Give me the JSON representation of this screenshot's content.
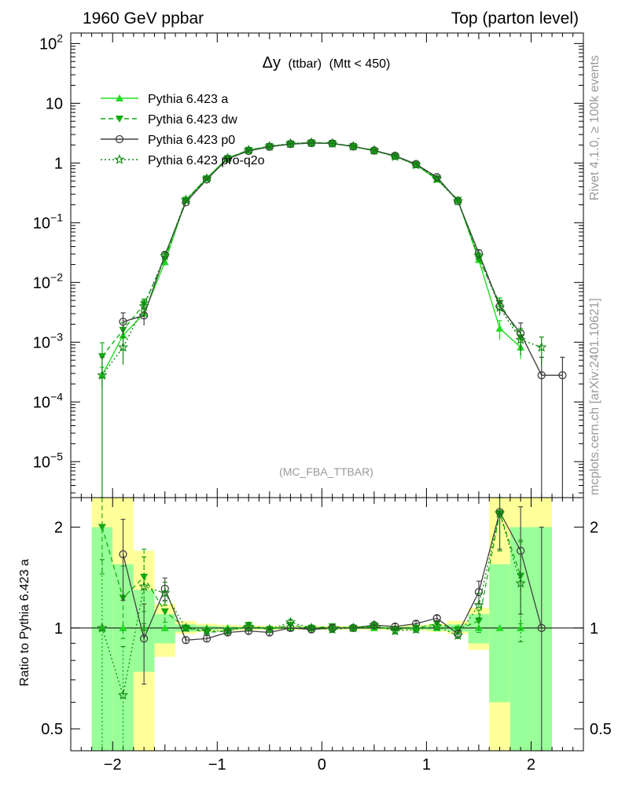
{
  "header": {
    "left": "1960 GeV ppbar",
    "right": "Top (parton level)"
  },
  "side_text": {
    "rivet": "Rivet 4.1.0, ≥ 100k events",
    "source": "mcplots.cern.ch [arXiv:2401.10621]"
  },
  "plot_title": {
    "delta": "Δy",
    "sub": "(ttbar)",
    "cut": "(Mtt < 450)"
  },
  "analysis_label": "(MC_FBA_TTBAR)",
  "colors": {
    "pythia_a": "#22dd22",
    "pythia_dw": "#11aa11",
    "pythia_p0": "#404040",
    "pythia_pro_q2o": "#118811",
    "band_yellow": "#ffff99",
    "band_green": "#99ff99"
  },
  "chart_data": [
    {
      "type": "line",
      "title": "Δy (ttbar) (Mtt < 450)",
      "xlabel": "",
      "ylabel": "",
      "yscale": "log",
      "xlim": [
        -2.4,
        2.5
      ],
      "ylim": [
        2.5e-06,
        150
      ],
      "y_ticks": [
        {
          "base": "10",
          "exp": "−5",
          "value": 1e-05
        },
        {
          "base": "10",
          "exp": "−4",
          "value": 0.0001
        },
        {
          "base": "10",
          "exp": "−3",
          "value": 0.001
        },
        {
          "base": "10",
          "exp": "−2",
          "value": 0.01
        },
        {
          "base": "10",
          "exp": "−1",
          "value": 0.1
        },
        {
          "base": "1",
          "exp": "",
          "value": 1
        },
        {
          "base": "10",
          "exp": "",
          "value": 10
        },
        {
          "base": "10",
          "exp": "2",
          "value": 100
        }
      ],
      "x": [
        -2.1,
        -1.9,
        -1.7,
        -1.5,
        -1.3,
        -1.1,
        -0.9,
        -0.7,
        -0.5,
        -0.3,
        -0.1,
        0.1,
        0.3,
        0.5,
        0.7,
        0.9,
        1.1,
        1.3,
        1.5,
        1.7,
        1.9,
        2.1,
        2.3
      ],
      "series": [
        {
          "name": "Pythia 6.423 a",
          "marker": "triangle-up",
          "dash": "solid",
          "values": [
            0.00028,
            0.0013,
            0.003,
            0.022,
            0.24,
            0.56,
            1.22,
            1.62,
            1.92,
            2.05,
            2.18,
            2.12,
            1.88,
            1.6,
            1.3,
            0.93,
            0.53,
            0.24,
            0.024,
            0.0017,
            0.00082,
            null,
            null
          ],
          "err": [
            0.0001,
            0.0003,
            0.0006,
            0.003,
            0.01,
            0.015,
            0.03,
            0.03,
            0.03,
            0.03,
            0.03,
            0.03,
            0.03,
            0.03,
            0.03,
            0.03,
            0.015,
            0.01,
            0.003,
            0.0006,
            0.0003,
            null,
            null
          ]
        },
        {
          "name": "Pythia 6.423 dw",
          "marker": "triangle-down",
          "dash": "dashed",
          "values": [
            0.00058,
            0.0016,
            0.0043,
            0.025,
            0.24,
            0.55,
            1.2,
            1.65,
            1.9,
            2.1,
            2.2,
            2.15,
            1.9,
            1.6,
            1.3,
            0.94,
            0.55,
            0.24,
            0.025,
            0.0045,
            0.0012,
            null,
            null
          ],
          "err": [
            0.0004,
            0.0005,
            0.001,
            0.003,
            0.01,
            0.015,
            0.03,
            0.03,
            0.03,
            0.03,
            0.03,
            0.03,
            0.03,
            0.03,
            0.03,
            0.03,
            0.015,
            0.01,
            0.003,
            0.001,
            0.0005,
            null,
            null
          ]
        },
        {
          "name": "Pythia 6.423 p0",
          "marker": "circle-open",
          "dash": "solid",
          "values": [
            null,
            0.0022,
            0.0028,
            0.029,
            0.22,
            0.53,
            1.18,
            1.59,
            1.87,
            2.08,
            2.16,
            2.13,
            1.89,
            1.62,
            1.32,
            0.96,
            0.58,
            0.23,
            0.031,
            0.004,
            0.0014,
            0.00028,
            0.00028
          ],
          "err": [
            null,
            0.0009,
            0.0009,
            0.004,
            0.01,
            0.015,
            0.03,
            0.03,
            0.03,
            0.03,
            0.03,
            0.03,
            0.03,
            0.03,
            0.03,
            0.03,
            0.015,
            0.01,
            0.004,
            0.001,
            0.0007,
            0.00028,
            0.00028
          ]
        },
        {
          "name": "Pythia 6.423 pro-q2o",
          "marker": "star",
          "dash": "dotted",
          "values": [
            0.00028,
            0.00082,
            0.004,
            0.028,
            0.24,
            0.55,
            1.2,
            1.64,
            1.9,
            2.12,
            2.2,
            2.12,
            1.9,
            1.62,
            1.28,
            0.93,
            0.54,
            0.23,
            0.028,
            0.0038,
            0.0011,
            0.00082,
            null
          ],
          "err": [
            0.00028,
            0.0004,
            0.001,
            0.003,
            0.01,
            0.015,
            0.03,
            0.03,
            0.03,
            0.03,
            0.03,
            0.03,
            0.03,
            0.03,
            0.03,
            0.03,
            0.015,
            0.01,
            0.003,
            0.001,
            0.0005,
            0.0004,
            null
          ]
        }
      ]
    },
    {
      "type": "line",
      "title": "",
      "xlabel": "",
      "ylabel": "Ratio to Pythia 6.423 a",
      "yscale": "log",
      "xlim": [
        -2.4,
        2.5
      ],
      "ylim": [
        0.43,
        2.45
      ],
      "x_ticks": [
        {
          "value": -2,
          "label": "−2"
        },
        {
          "value": -1,
          "label": "−1"
        },
        {
          "value": 0,
          "label": "0"
        },
        {
          "value": 1,
          "label": "1"
        },
        {
          "value": 2,
          "label": "2"
        }
      ],
      "y_ticks": [
        {
          "value": 0.5,
          "label": "0.5"
        },
        {
          "value": 1,
          "label": "1"
        },
        {
          "value": 2,
          "label": "2"
        }
      ],
      "bands": {
        "edges": [
          -2.2,
          -2.0,
          -1.8,
          -1.6,
          -1.4,
          -1.2,
          -1.0,
          -0.8,
          -0.6,
          -0.4,
          -0.2,
          0.0,
          0.2,
          0.4,
          0.6,
          0.8,
          1.0,
          1.2,
          1.4,
          1.6,
          1.8,
          2.0,
          2.2
        ],
        "yellow_low": [
          0.1,
          0.1,
          0.1,
          0.82,
          0.96,
          0.975,
          0.982,
          0.985,
          0.987,
          0.988,
          0.988,
          0.988,
          0.988,
          0.987,
          0.985,
          0.982,
          0.975,
          0.96,
          0.86,
          0.1,
          0.1,
          0.1
        ],
        "yellow_high": [
          3.0,
          3.0,
          1.7,
          1.18,
          1.05,
          1.03,
          1.022,
          1.018,
          1.016,
          1.015,
          1.015,
          1.015,
          1.015,
          1.016,
          1.018,
          1.022,
          1.03,
          1.05,
          1.15,
          3.0,
          3.0,
          3.0
        ],
        "green_low": [
          0.1,
          0.1,
          0.74,
          0.9,
          0.975,
          0.985,
          0.99,
          0.992,
          0.993,
          0.994,
          0.994,
          0.994,
          0.994,
          0.993,
          0.992,
          0.99,
          0.985,
          0.975,
          0.9,
          0.6,
          0.43,
          0.43
        ],
        "green_high": [
          2.0,
          1.55,
          1.3,
          1.1,
          1.025,
          1.015,
          1.01,
          1.008,
          1.007,
          1.006,
          1.006,
          1.006,
          1.006,
          1.007,
          1.008,
          1.01,
          1.015,
          1.025,
          1.1,
          1.55,
          2.0,
          2.0
        ]
      },
      "x": [
        -2.1,
        -1.9,
        -1.7,
        -1.5,
        -1.3,
        -1.1,
        -0.9,
        -0.7,
        -0.5,
        -0.3,
        -0.1,
        0.1,
        0.3,
        0.5,
        0.7,
        0.9,
        1.1,
        1.3,
        1.5,
        1.7,
        1.9,
        2.1
      ],
      "series": [
        {
          "name": "Pythia 6.423 a",
          "values": [
            1,
            1,
            1,
            1,
            1,
            1,
            1,
            1,
            1,
            1,
            1,
            1,
            1,
            1,
            1,
            1,
            1,
            1,
            1,
            1,
            1,
            null
          ]
        },
        {
          "name": "Pythia 6.423 dw",
          "values": [
            2.0,
            1.23,
            1.42,
            1.12,
            1.0,
            0.97,
            0.98,
            1.02,
            0.99,
            1.02,
            1.0,
            1.01,
            1.0,
            1.01,
            0.99,
            1.0,
            1.03,
            0.99,
            1.05,
            2.2,
            1.43,
            null
          ],
          "err": [
            0.55,
            0.3,
            0.3,
            0.08,
            0.02,
            0.02,
            0.02,
            0.02,
            0.02,
            0.02,
            0.02,
            0.02,
            0.02,
            0.02,
            0.02,
            0.02,
            0.02,
            0.02,
            0.08,
            0.5,
            0.4,
            null
          ]
        },
        {
          "name": "Pythia 6.423 p0",
          "values": [
            null,
            1.66,
            0.93,
            1.31,
            0.92,
            0.93,
            0.97,
            0.98,
            0.97,
            1.0,
            0.99,
            1.0,
            1.0,
            1.02,
            1.01,
            1.03,
            1.07,
            0.96,
            1.28,
            2.22,
            1.7,
            1.0
          ],
          "err": [
            null,
            0.45,
            0.25,
            0.1,
            0.02,
            0.02,
            0.02,
            0.02,
            0.02,
            0.02,
            0.02,
            0.02,
            0.02,
            0.02,
            0.02,
            0.02,
            0.02,
            0.02,
            0.1,
            0.5,
            0.6,
            1.0
          ]
        },
        {
          "name": "Pythia 6.423 pro-q2o",
          "values": [
            1.0,
            0.63,
            1.33,
            1.27,
            1.0,
            0.98,
            0.98,
            1.01,
            0.99,
            1.04,
            1.0,
            0.99,
            1.0,
            1.02,
            0.98,
            0.99,
            1.01,
            0.95,
            1.17,
            2.2,
            1.36,
            null
          ],
          "err": [
            0.6,
            0.25,
            0.3,
            0.1,
            0.02,
            0.02,
            0.02,
            0.02,
            0.02,
            0.02,
            0.02,
            0.02,
            0.02,
            0.02,
            0.02,
            0.02,
            0.02,
            0.02,
            0.1,
            0.5,
            0.45,
            null
          ]
        }
      ]
    }
  ]
}
